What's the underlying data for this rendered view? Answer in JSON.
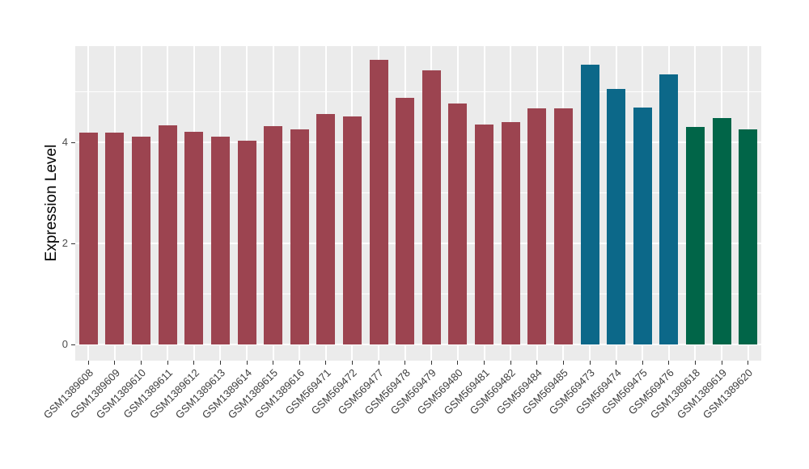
{
  "figure": {
    "background": "#FFFFFF",
    "panel_background": "#EBEBEB",
    "gridline_color": "#FFFFFF",
    "axis_text_color": "#4D4D4D",
    "axis_title_color": "#000000",
    "tick_mark_color": "#333333"
  },
  "chart_data": {
    "type": "bar",
    "title": "",
    "xlabel": "",
    "ylabel": "Expression Level",
    "legend_position": "none",
    "grid": "on",
    "x_tick_rotation_deg": 45,
    "ylim": [
      -0.32,
      5.9
    ],
    "y_ticks": [
      0,
      2,
      4
    ],
    "y_minor_gridlines": [
      1,
      3,
      5
    ],
    "categories": [
      "GSM1389608",
      "GSM1389609",
      "GSM1389610",
      "GSM1389611",
      "GSM1389612",
      "GSM1389613",
      "GSM1389614",
      "GSM1389615",
      "GSM1389616",
      "GSM569471",
      "GSM569472",
      "GSM569477",
      "GSM569478",
      "GSM569479",
      "GSM569480",
      "GSM569481",
      "GSM569482",
      "GSM569484",
      "GSM569485",
      "GSM569473",
      "GSM569474",
      "GSM569475",
      "GSM569476",
      "GSM1389618",
      "GSM1389619",
      "GSM1389620"
    ],
    "values": [
      4.19,
      4.19,
      4.11,
      4.33,
      4.21,
      4.12,
      4.04,
      4.32,
      4.26,
      4.56,
      4.51,
      5.64,
      4.88,
      5.43,
      4.77,
      4.36,
      4.4,
      4.67,
      4.67,
      5.53,
      5.05,
      4.69,
      5.34,
      4.3,
      4.48,
      4.26
    ],
    "bar_colors": [
      "#9C4450",
      "#9C4450",
      "#9C4450",
      "#9C4450",
      "#9C4450",
      "#9C4450",
      "#9C4450",
      "#9C4450",
      "#9C4450",
      "#9C4450",
      "#9C4450",
      "#9C4450",
      "#9C4450",
      "#9C4450",
      "#9C4450",
      "#9C4450",
      "#9C4450",
      "#9C4450",
      "#9C4450",
      "#0C6889",
      "#0C6889",
      "#0C6889",
      "#0C6889",
      "#016548",
      "#016548",
      "#016548"
    ],
    "palette": {
      "maroon": "#9C4450",
      "teal": "#0C6889",
      "green": "#016548"
    }
  }
}
